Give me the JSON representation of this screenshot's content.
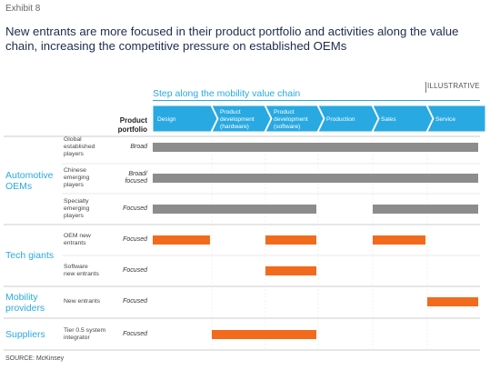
{
  "exhibit": "Exhibit 8",
  "headline_line1": "New entrants are more focused in their product portfolio and activities along the value",
  "headline_line2": "chain, increasing the competitive pressure on established OEMs",
  "illustrative": "ILLUSTRATIVE",
  "step_label": "Step along the mobility value chain",
  "portfolio_header": [
    "Product",
    "portfolio"
  ],
  "stages": [
    {
      "lines": [
        "Design"
      ]
    },
    {
      "lines": [
        "Product",
        "development",
        "(hardware)"
      ]
    },
    {
      "lines": [
        "Product",
        "development",
        "(software)"
      ]
    },
    {
      "lines": [
        "Production"
      ]
    },
    {
      "lines": [
        "Sales"
      ]
    },
    {
      "lines": [
        "Service"
      ]
    }
  ],
  "groups": [
    {
      "label": [
        "Automotive",
        "OEMs"
      ]
    },
    {
      "label": [
        "Tech giants"
      ]
    },
    {
      "label": [
        "Mobility",
        "providers"
      ]
    },
    {
      "label": [
        "Suppliers"
      ]
    }
  ],
  "rows": [
    {
      "name": [
        "Global",
        "established",
        "players"
      ],
      "portfolio": [
        "Broad"
      ],
      "color": "#8c8c8c",
      "segments": [
        [
          0,
          6
        ]
      ]
    },
    {
      "name": [
        "Chinese",
        "emerging",
        "players"
      ],
      "portfolio": [
        "Broad/",
        "focused"
      ],
      "color": "#8c8c8c",
      "segments": [
        [
          0,
          6
        ]
      ]
    },
    {
      "name": [
        "Specialty",
        "emerging",
        "players"
      ],
      "portfolio": [
        "Focused"
      ],
      "color": "#8c8c8c",
      "segments": [
        [
          0,
          3
        ],
        [
          4,
          6
        ]
      ]
    },
    {
      "name": [
        "OEM new",
        "entrants"
      ],
      "portfolio": [
        "Focused"
      ],
      "color": "#f26b1d",
      "segments": [
        [
          0,
          1
        ],
        [
          2,
          3
        ],
        [
          4,
          5
        ]
      ]
    },
    {
      "name": [
        "Software",
        "new entrants"
      ],
      "portfolio": [
        "Focused"
      ],
      "color": "#f26b1d",
      "segments": [
        [
          2,
          3
        ]
      ]
    },
    {
      "name": [
        "New entrants"
      ],
      "portfolio": [
        "Focused"
      ],
      "color": "#f26b1d",
      "segments": [
        [
          5,
          6
        ]
      ]
    },
    {
      "name": [
        "Tier 0.5 system",
        "integrator"
      ],
      "portfolio": [
        "Focused"
      ],
      "color": "#f26b1d",
      "segments": [
        [
          1,
          3
        ]
      ]
    }
  ],
  "chevron_color": "#29a9e1",
  "source": "SOURCE: McKinsey"
}
